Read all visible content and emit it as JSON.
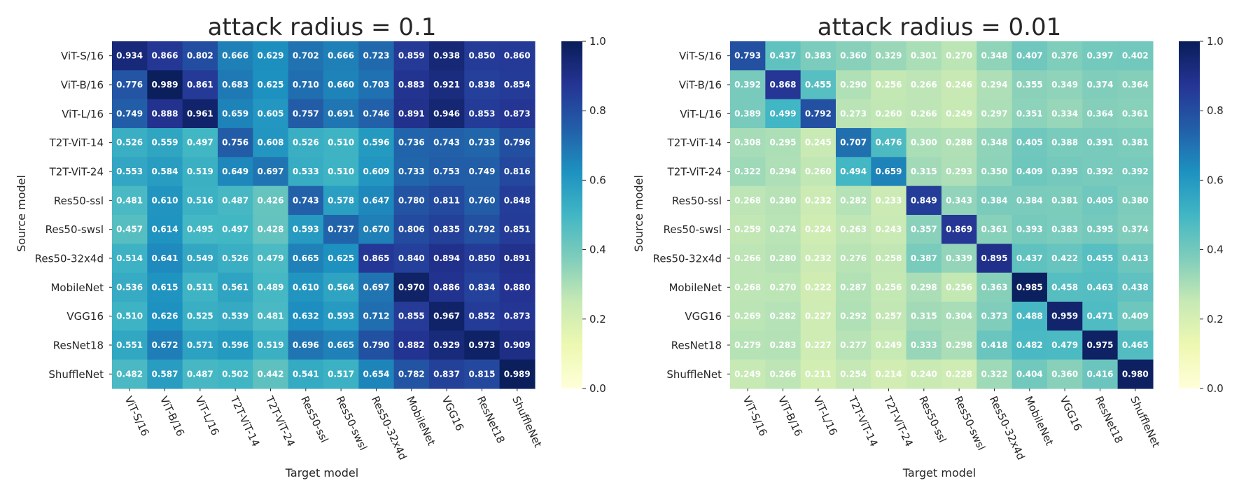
{
  "chart_data": [
    {
      "type": "heatmap",
      "title": "attack radius = 0.1",
      "xlabel": "Target model",
      "ylabel": "Source model",
      "x_categories": [
        "ViT-S/16",
        "ViT-B/16",
        "ViT-L/16",
        "T2T-ViT-14",
        "T2T-ViT-24",
        "Res50-ssl",
        "Res50-swsl",
        "Res50-32x4d",
        "MobileNet",
        "VGG16",
        "ResNet18",
        "ShuffleNet"
      ],
      "y_categories": [
        "ViT-S/16",
        "ViT-B/16",
        "ViT-L/16",
        "T2T-ViT-14",
        "T2T-ViT-24",
        "Res50-ssl",
        "Res50-swsl",
        "Res50-32x4d",
        "MobileNet",
        "VGG16",
        "ResNet18",
        "ShuffleNet"
      ],
      "values": [
        [
          "0.934",
          "0.866",
          "0.802",
          "0.666",
          "0.629",
          "0.702",
          "0.666",
          "0.723",
          "0.859",
          "0.938",
          "0.850",
          "0.860"
        ],
        [
          "0.776",
          "0.989",
          "0.861",
          "0.683",
          "0.625",
          "0.710",
          "0.660",
          "0.703",
          "0.883",
          "0.921",
          "0.838",
          "0.854"
        ],
        [
          "0.749",
          "0.888",
          "0.961",
          "0.659",
          "0.605",
          "0.757",
          "0.691",
          "0.746",
          "0.891",
          "0.946",
          "0.853",
          "0.873"
        ],
        [
          "0.526",
          "0.559",
          "0.497",
          "0.756",
          "0.608",
          "0.526",
          "0.510",
          "0.596",
          "0.736",
          "0.743",
          "0.733",
          "0.796"
        ],
        [
          "0.553",
          "0.584",
          "0.519",
          "0.649",
          "0.697",
          "0.533",
          "0.510",
          "0.609",
          "0.733",
          "0.753",
          "0.749",
          "0.816"
        ],
        [
          "0.481",
          "0.610",
          "0.516",
          "0.487",
          "0.426",
          "0.743",
          "0.578",
          "0.647",
          "0.780",
          "0.811",
          "0.760",
          "0.848"
        ],
        [
          "0.457",
          "0.614",
          "0.495",
          "0.497",
          "0.428",
          "0.593",
          "0.737",
          "0.670",
          "0.806",
          "0.835",
          "0.792",
          "0.851"
        ],
        [
          "0.514",
          "0.641",
          "0.549",
          "0.526",
          "0.479",
          "0.665",
          "0.625",
          "0.865",
          "0.840",
          "0.894",
          "0.850",
          "0.891"
        ],
        [
          "0.536",
          "0.615",
          "0.511",
          "0.561",
          "0.489",
          "0.610",
          "0.564",
          "0.697",
          "0.970",
          "0.886",
          "0.834",
          "0.880"
        ],
        [
          "0.510",
          "0.626",
          "0.525",
          "0.539",
          "0.481",
          "0.632",
          "0.593",
          "0.712",
          "0.855",
          "0.967",
          "0.852",
          "0.873"
        ],
        [
          "0.551",
          "0.672",
          "0.571",
          "0.596",
          "0.519",
          "0.696",
          "0.665",
          "0.790",
          "0.882",
          "0.929",
          "0.973",
          "0.909"
        ],
        [
          "0.482",
          "0.587",
          "0.487",
          "0.502",
          "0.442",
          "0.541",
          "0.517",
          "0.654",
          "0.782",
          "0.837",
          "0.815",
          "0.989"
        ]
      ],
      "colorbar": {
        "range": [
          0,
          1
        ],
        "ticks": [
          "0.0",
          "0.2",
          "0.4",
          "0.6",
          "0.8",
          "1.0"
        ]
      },
      "colormap": "YlGnBu"
    },
    {
      "type": "heatmap",
      "title": "attack radius = 0.01",
      "xlabel": "Target model",
      "ylabel": "Source model",
      "x_categories": [
        "ViT-S/16",
        "ViT-B/16",
        "ViT-L/16",
        "T2T-ViT-14",
        "T2T-ViT-24",
        "Res50-ssl",
        "Res50-swsl",
        "Res50-32x4d",
        "MobileNet",
        "VGG16",
        "ResNet18",
        "ShuffleNet"
      ],
      "y_categories": [
        "ViT-S/16",
        "ViT-B/16",
        "ViT-L/16",
        "T2T-ViT-14",
        "T2T-ViT-24",
        "Res50-ssl",
        "Res50-swsl",
        "Res50-32x4d",
        "MobileNet",
        "VGG16",
        "ResNet18",
        "ShuffleNet"
      ],
      "values": [
        [
          "0.793",
          "0.437",
          "0.383",
          "0.360",
          "0.329",
          "0.301",
          "0.270",
          "0.348",
          "0.407",
          "0.376",
          "0.397",
          "0.402"
        ],
        [
          "0.392",
          "0.868",
          "0.455",
          "0.290",
          "0.256",
          "0.266",
          "0.246",
          "0.294",
          "0.355",
          "0.349",
          "0.374",
          "0.364"
        ],
        [
          "0.389",
          "0.499",
          "0.792",
          "0.273",
          "0.260",
          "0.266",
          "0.249",
          "0.297",
          "0.351",
          "0.334",
          "0.364",
          "0.361"
        ],
        [
          "0.308",
          "0.295",
          "0.245",
          "0.707",
          "0.476",
          "0.300",
          "0.288",
          "0.348",
          "0.405",
          "0.388",
          "0.391",
          "0.381"
        ],
        [
          "0.322",
          "0.294",
          "0.260",
          "0.494",
          "0.659",
          "0.315",
          "0.293",
          "0.350",
          "0.409",
          "0.395",
          "0.392",
          "0.392"
        ],
        [
          "0.268",
          "0.280",
          "0.232",
          "0.282",
          "0.233",
          "0.849",
          "0.343",
          "0.384",
          "0.384",
          "0.381",
          "0.405",
          "0.380"
        ],
        [
          "0.259",
          "0.274",
          "0.224",
          "0.263",
          "0.243",
          "0.357",
          "0.869",
          "0.361",
          "0.393",
          "0.383",
          "0.395",
          "0.374"
        ],
        [
          "0.266",
          "0.280",
          "0.232",
          "0.276",
          "0.258",
          "0.387",
          "0.339",
          "0.895",
          "0.437",
          "0.422",
          "0.455",
          "0.413"
        ],
        [
          "0.268",
          "0.270",
          "0.222",
          "0.287",
          "0.256",
          "0.298",
          "0.256",
          "0.363",
          "0.985",
          "0.458",
          "0.463",
          "0.438"
        ],
        [
          "0.269",
          "0.282",
          "0.227",
          "0.292",
          "0.257",
          "0.315",
          "0.304",
          "0.373",
          "0.488",
          "0.959",
          "0.471",
          "0.409"
        ],
        [
          "0.279",
          "0.283",
          "0.227",
          "0.277",
          "0.249",
          "0.333",
          "0.298",
          "0.418",
          "0.482",
          "0.479",
          "0.975",
          "0.465"
        ],
        [
          "0.249",
          "0.266",
          "0.211",
          "0.254",
          "0.214",
          "0.240",
          "0.228",
          "0.322",
          "0.404",
          "0.360",
          "0.416",
          "0.980"
        ]
      ],
      "colorbar": {
        "range": [
          0,
          1
        ],
        "ticks": [
          "0.0",
          "0.2",
          "0.4",
          "0.6",
          "0.8",
          "1.0"
        ]
      },
      "colormap": "YlGnBu"
    }
  ],
  "colors": {
    "background": "#ffffff",
    "text": "#262626",
    "cell_label": "#ffffff",
    "colormap_stops": [
      "#ffffd9",
      "#edf8b1",
      "#c7e9b4",
      "#7fcdbb",
      "#41b6c4",
      "#1d91c0",
      "#225ea8",
      "#253494",
      "#081d58"
    ]
  }
}
